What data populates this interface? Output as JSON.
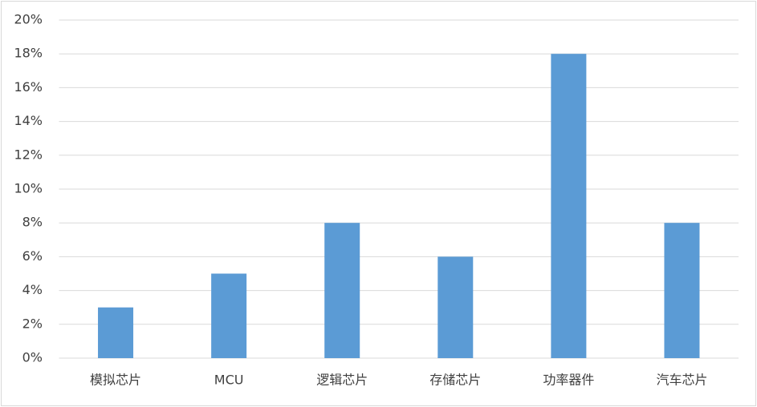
{
  "chart_data": {
    "type": "bar",
    "categories": [
      "模拟芯片",
      "MCU",
      "逻辑芯片",
      "存储芯片",
      "功率器件",
      "汽车芯片"
    ],
    "values": [
      3,
      5,
      8,
      6,
      18,
      8
    ],
    "color": "#5b9bd5",
    "ylim": [
      0,
      20
    ],
    "yticks": [
      {
        "value": 0,
        "label": "0%"
      },
      {
        "value": 2,
        "label": "2%"
      },
      {
        "value": 4,
        "label": "4%"
      },
      {
        "value": 6,
        "label": "6%"
      },
      {
        "value": 8,
        "label": "8%"
      },
      {
        "value": 10,
        "label": "10%"
      },
      {
        "value": 12,
        "label": "12%"
      },
      {
        "value": 14,
        "label": "14%"
      },
      {
        "value": 16,
        "label": "16%"
      },
      {
        "value": 18,
        "label": "18%"
      },
      {
        "value": 20,
        "label": "20%"
      }
    ],
    "grid": true
  }
}
